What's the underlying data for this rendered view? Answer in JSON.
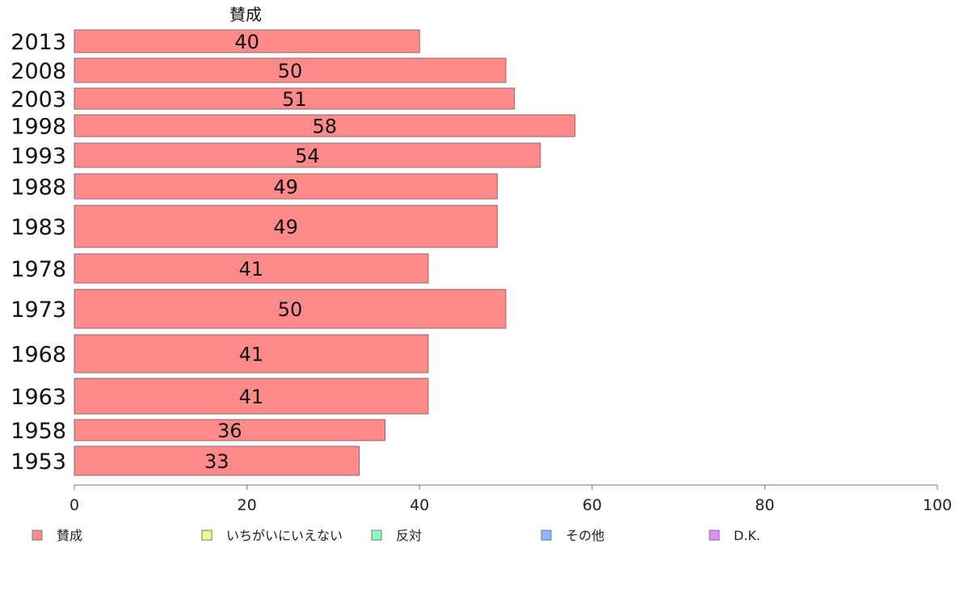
{
  "chart_data": {
    "type": "bar",
    "orientation": "horizontal",
    "stacked": true,
    "categories": [
      "2013",
      "2008",
      "2003",
      "1998",
      "1993",
      "1988",
      "1983",
      "1978",
      "1973",
      "1968",
      "1963",
      "1958",
      "1953"
    ],
    "series": [
      {
        "name": "賛成",
        "color": "#ff8a8a",
        "values": [
          40,
          50,
          51,
          58,
          54,
          49,
          49,
          41,
          50,
          41,
          41,
          36,
          33
        ]
      }
    ],
    "series_title": "賛成",
    "xlim": [
      0,
      100
    ],
    "xticks": [
      0,
      20,
      40,
      60,
      80,
      100
    ],
    "grid": false,
    "legend_position": "bottom",
    "legend": [
      {
        "name": "賛成",
        "color": "#ff8a8a"
      },
      {
        "name": "いちがいにいえない",
        "color": "#f0ff8a"
      },
      {
        "name": "反対",
        "color": "#8affc0"
      },
      {
        "name": "その他",
        "color": "#8ab8ff"
      },
      {
        "name": "D.K.",
        "color": "#e88aff"
      }
    ]
  }
}
